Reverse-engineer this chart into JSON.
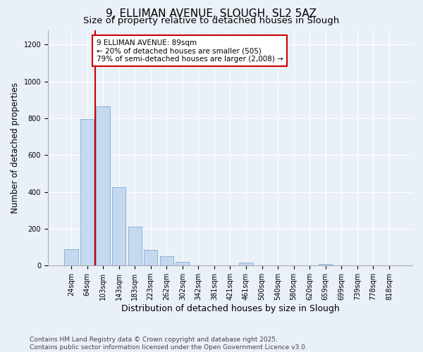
{
  "title_line1": "9, ELLIMAN AVENUE, SLOUGH, SL2 5AZ",
  "title_line2": "Size of property relative to detached houses in Slough",
  "xlabel": "Distribution of detached houses by size in Slough",
  "ylabel": "Number of detached properties",
  "categories": [
    "24sqm",
    "64sqm",
    "103sqm",
    "143sqm",
    "183sqm",
    "223sqm",
    "262sqm",
    "302sqm",
    "342sqm",
    "381sqm",
    "421sqm",
    "461sqm",
    "500sqm",
    "540sqm",
    "580sqm",
    "620sqm",
    "659sqm",
    "699sqm",
    "739sqm",
    "778sqm",
    "818sqm"
  ],
  "values": [
    90,
    795,
    865,
    425,
    210,
    85,
    50,
    20,
    0,
    0,
    0,
    15,
    0,
    0,
    0,
    0,
    10,
    0,
    0,
    0,
    0
  ],
  "bar_color": "#c5d8ef",
  "bar_edge_color": "#7badd4",
  "background_color": "#eaf0f8",
  "grid_color": "#ffffff",
  "vline_x_index": 1.5,
  "vline_color": "#cc0000",
  "annotation_text": "9 ELLIMAN AVENUE: 89sqm\n← 20% of detached houses are smaller (505)\n79% of semi-detached houses are larger (2,008) →",
  "annotation_box_color": "#cc0000",
  "annotation_bg": "#ffffff",
  "ylim": [
    0,
    1280
  ],
  "yticks": [
    0,
    200,
    400,
    600,
    800,
    1000,
    1200
  ],
  "footer_line1": "Contains HM Land Registry data © Crown copyright and database right 2025.",
  "footer_line2": "Contains public sector information licensed under the Open Government Licence v3.0.",
  "title_fontsize": 11,
  "subtitle_fontsize": 9.5,
  "tick_fontsize": 7,
  "ylabel_fontsize": 8.5,
  "xlabel_fontsize": 9,
  "footer_fontsize": 6.5,
  "annot_fontsize": 7.5
}
